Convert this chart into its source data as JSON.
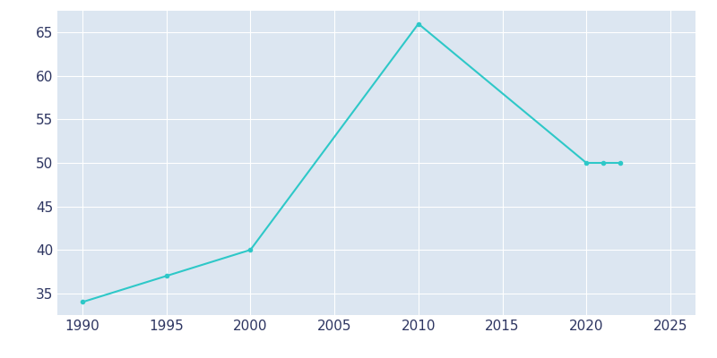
{
  "x": [
    1990,
    1995,
    2000,
    2010,
    2020,
    2021,
    2022
  ],
  "y": [
    34,
    37,
    40,
    66,
    50,
    50,
    50
  ],
  "line_color": "#2ec8c8",
  "marker": "o",
  "marker_size": 3,
  "line_width": 1.5,
  "axes_background_color": "#dce6f1",
  "fig_background_color": "#ffffff",
  "grid_color": "#ffffff",
  "tick_color": "#2d3561",
  "xlabel": "",
  "ylabel": "",
  "xlim": [
    1988.5,
    2026.5
  ],
  "ylim": [
    32.5,
    67.5
  ],
  "xticks": [
    1990,
    1995,
    2000,
    2005,
    2010,
    2015,
    2020,
    2025
  ],
  "yticks": [
    35,
    40,
    45,
    50,
    55,
    60,
    65
  ],
  "tick_fontsize": 11,
  "figsize": [
    8.0,
    4.0
  ],
  "dpi": 100
}
